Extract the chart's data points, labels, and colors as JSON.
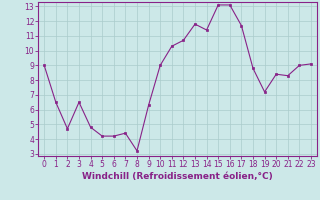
{
  "x": [
    0,
    1,
    2,
    3,
    4,
    5,
    6,
    7,
    8,
    9,
    10,
    11,
    12,
    13,
    14,
    15,
    16,
    17,
    18,
    19,
    20,
    21,
    22,
    23
  ],
  "y": [
    9,
    6.5,
    4.7,
    6.5,
    4.8,
    4.2,
    4.2,
    4.4,
    3.2,
    6.3,
    9.0,
    10.3,
    10.7,
    11.8,
    11.4,
    13.1,
    13.1,
    11.7,
    8.8,
    7.2,
    8.4,
    8.3,
    9.0,
    9.1
  ],
  "line_color": "#882288",
  "marker": "s",
  "marker_size": 2.0,
  "bg_color": "#cce8e8",
  "grid_color": "#aacccc",
  "xlabel": "Windchill (Refroidissement éolien,°C)",
  "ylim_min": 3,
  "ylim_max": 13,
  "xlim_min": -0.5,
  "xlim_max": 23.5,
  "yticks": [
    3,
    4,
    5,
    6,
    7,
    8,
    9,
    10,
    11,
    12,
    13
  ],
  "xticks": [
    0,
    1,
    2,
    3,
    4,
    5,
    6,
    7,
    8,
    9,
    10,
    11,
    12,
    13,
    14,
    15,
    16,
    17,
    18,
    19,
    20,
    21,
    22,
    23
  ],
  "tick_fontsize": 5.5,
  "xlabel_fontsize": 6.5,
  "spine_color": "#882288",
  "line_width": 0.8
}
